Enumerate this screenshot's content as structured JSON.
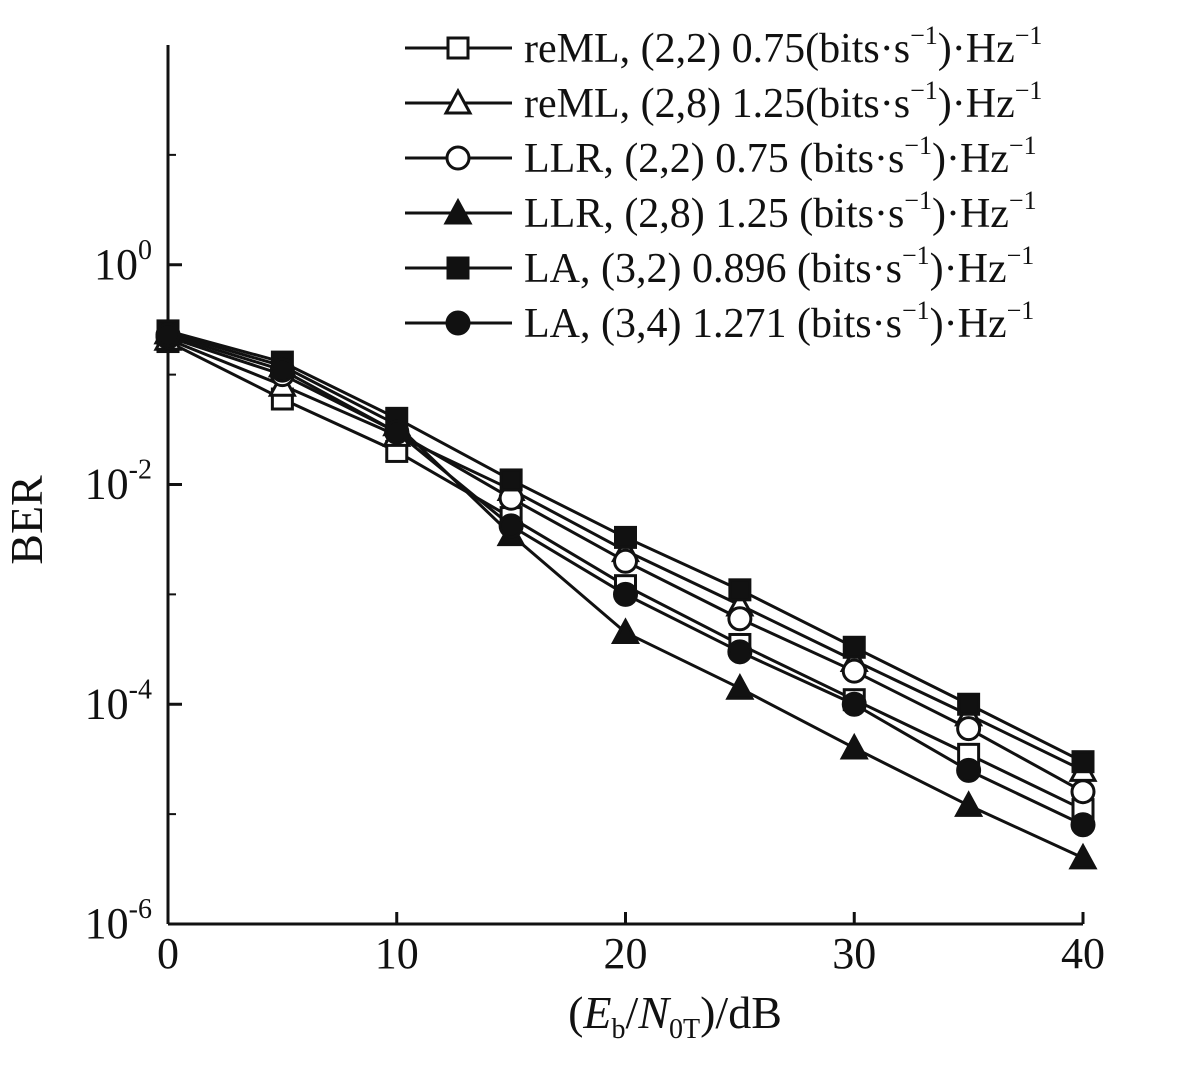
{
  "chart_data": {
    "type": "line",
    "title": "",
    "xlabel": "(E_b/N_0T)/dB",
    "xlabel_parts": {
      "open": "(",
      "E": "E",
      "b": "b",
      "slash1": "/",
      "N": "N",
      "sub0T": "0T",
      "close": ")/dB"
    },
    "ylabel": "BER",
    "x": [
      0,
      5,
      10,
      15,
      20,
      25,
      30,
      35,
      40
    ],
    "xlim": [
      0,
      40
    ],
    "ylim_log10": [
      -6,
      2
    ],
    "x_ticks": [
      0,
      10,
      20,
      30,
      40
    ],
    "x_tick_labels": [
      "0",
      "10",
      "20",
      "30",
      "40"
    ],
    "y_ticks": [
      {
        "exp": 0,
        "base": "10",
        "sup": "0"
      },
      {
        "exp": -2,
        "base": "10",
        "sup": "-2"
      },
      {
        "exp": -4,
        "base": "10",
        "sup": "-4"
      },
      {
        "exp": -6,
        "base": "10",
        "sup": "-6"
      }
    ],
    "legend_position": "top-right",
    "series": [
      {
        "name": "reML, (2,2) 0.75(bits·s⁻¹)·Hz⁻¹",
        "marker": "square-open",
        "values": [
          0.2,
          0.06,
          0.02,
          0.005,
          0.0012,
          0.00035,
          0.00011,
          3.5e-05,
          1.1e-05
        ]
      },
      {
        "name": "reML, (2,8) 1.25(bits·s⁻¹)·Hz⁻¹",
        "marker": "triangle-open",
        "values": [
          0.21,
          0.08,
          0.028,
          0.009,
          0.0025,
          0.0008,
          0.00025,
          8e-05,
          2.5e-05
        ]
      },
      {
        "name": "LLR, (2,2) 0.75 (bits·s⁻¹)·Hz⁻¹",
        "marker": "circle-open",
        "values": [
          0.22,
          0.1,
          0.03,
          0.0075,
          0.002,
          0.0006,
          0.0002,
          6e-05,
          1.6e-05
        ]
      },
      {
        "name": "LLR, (2,8) 1.25 (bits·s⁻¹)·Hz⁻¹",
        "marker": "triangle-filled",
        "values": [
          0.24,
          0.12,
          0.035,
          0.0035,
          0.00045,
          0.00014,
          4e-05,
          1.2e-05,
          4e-06
        ]
      },
      {
        "name": "LA, (3,2) 0.896 (bits·s⁻¹)·Hz⁻¹",
        "marker": "square-filled",
        "values": [
          0.25,
          0.13,
          0.04,
          0.011,
          0.0033,
          0.0011,
          0.00033,
          0.0001,
          3e-05
        ]
      },
      {
        "name": "LA, (3,4) 1.271 (bits·s⁻¹)·Hz⁻¹",
        "marker": "circle-filled",
        "values": [
          0.23,
          0.11,
          0.03,
          0.0042,
          0.001,
          0.0003,
          0.0001,
          2.5e-05,
          8e-06
        ]
      }
    ],
    "legend_labels": [
      {
        "prefix": "reML, (2,2) 0.75(bits·s",
        "unit": ")·Hz"
      },
      {
        "prefix": "reML, (2,8) 1.25(bits·s",
        "unit": ")·Hz"
      },
      {
        "prefix": "LLR, (2,2) 0.75 (bits·s",
        "unit": ")·Hz"
      },
      {
        "prefix": "LLR, (2,8) 1.25 (bits·s",
        "unit": ")·Hz"
      },
      {
        "prefix": "LA, (3,2) 0.896 (bits·s",
        "unit": ")·Hz"
      },
      {
        "prefix": "LA, (3,4) 1.271 (bits·s",
        "unit": ")·Hz"
      }
    ],
    "legend_sup": "−1"
  }
}
